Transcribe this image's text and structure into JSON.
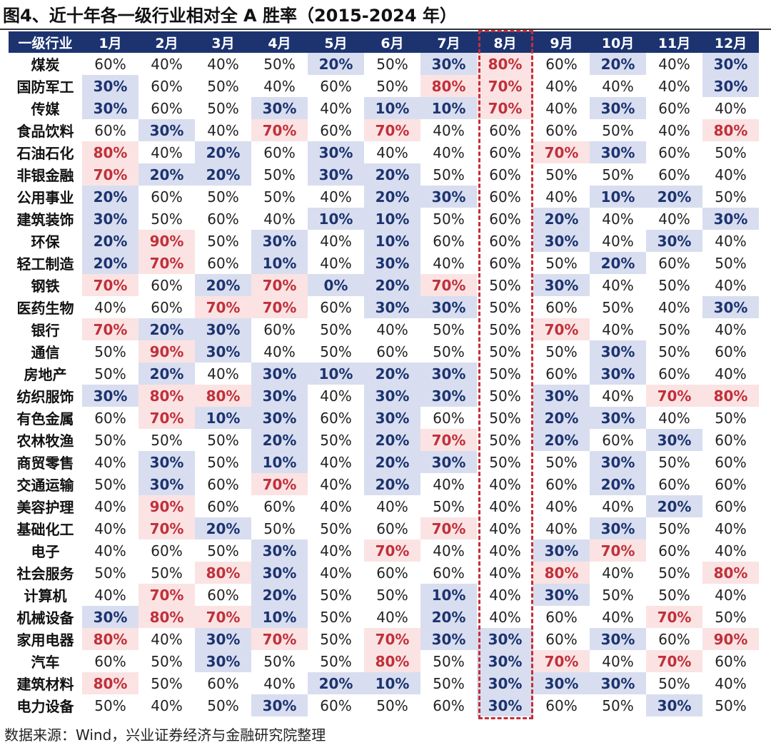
{
  "title": "图4、近十年各一级行业相对全 A 胜率（2015-2024 年）",
  "table": {
    "header": [
      "一级行业",
      "1月",
      "2月",
      "3月",
      "4月",
      "5月",
      "6月",
      "7月",
      "8月",
      "9月",
      "10月",
      "11月",
      "12月"
    ],
    "rows": [
      [
        "煤炭",
        "60%",
        "40%",
        "40%",
        "50%",
        "20%",
        "50%",
        "30%",
        "80%",
        "60%",
        "20%",
        "40%",
        "30%"
      ],
      [
        "国防军工",
        "30%",
        "60%",
        "50%",
        "40%",
        "60%",
        "50%",
        "80%",
        "70%",
        "40%",
        "40%",
        "40%",
        "30%"
      ],
      [
        "传媒",
        "30%",
        "60%",
        "50%",
        "30%",
        "40%",
        "10%",
        "10%",
        "70%",
        "40%",
        "30%",
        "60%",
        "40%"
      ],
      [
        "食品饮料",
        "60%",
        "30%",
        "40%",
        "70%",
        "60%",
        "70%",
        "40%",
        "60%",
        "60%",
        "50%",
        "40%",
        "80%"
      ],
      [
        "石油石化",
        "80%",
        "40%",
        "20%",
        "60%",
        "30%",
        "40%",
        "40%",
        "60%",
        "70%",
        "30%",
        "60%",
        "50%"
      ],
      [
        "非银金融",
        "70%",
        "20%",
        "20%",
        "50%",
        "30%",
        "20%",
        "50%",
        "60%",
        "50%",
        "50%",
        "60%",
        "40%"
      ],
      [
        "公用事业",
        "20%",
        "60%",
        "50%",
        "50%",
        "40%",
        "20%",
        "30%",
        "60%",
        "40%",
        "10%",
        "20%",
        "50%"
      ],
      [
        "建筑装饰",
        "30%",
        "50%",
        "60%",
        "40%",
        "10%",
        "10%",
        "50%",
        "60%",
        "20%",
        "40%",
        "40%",
        "30%"
      ],
      [
        "环保",
        "20%",
        "90%",
        "50%",
        "30%",
        "40%",
        "10%",
        "60%",
        "60%",
        "30%",
        "40%",
        "30%",
        "40%"
      ],
      [
        "轻工制造",
        "20%",
        "70%",
        "60%",
        "10%",
        "40%",
        "30%",
        "40%",
        "60%",
        "50%",
        "20%",
        "60%",
        "50%"
      ],
      [
        "钢铁",
        "70%",
        "60%",
        "20%",
        "70%",
        "0%",
        "20%",
        "70%",
        "50%",
        "30%",
        "40%",
        "50%",
        "40%"
      ],
      [
        "医药生物",
        "40%",
        "60%",
        "70%",
        "70%",
        "60%",
        "30%",
        "30%",
        "50%",
        "60%",
        "50%",
        "40%",
        "30%"
      ],
      [
        "银行",
        "70%",
        "20%",
        "30%",
        "60%",
        "50%",
        "40%",
        "50%",
        "50%",
        "70%",
        "40%",
        "50%",
        "40%"
      ],
      [
        "通信",
        "50%",
        "90%",
        "30%",
        "40%",
        "50%",
        "60%",
        "50%",
        "50%",
        "50%",
        "30%",
        "50%",
        "60%"
      ],
      [
        "房地产",
        "50%",
        "20%",
        "40%",
        "30%",
        "10%",
        "20%",
        "30%",
        "50%",
        "60%",
        "30%",
        "60%",
        "40%"
      ],
      [
        "纺织服饰",
        "30%",
        "80%",
        "80%",
        "30%",
        "40%",
        "30%",
        "30%",
        "50%",
        "30%",
        "40%",
        "70%",
        "80%"
      ],
      [
        "有色金属",
        "60%",
        "70%",
        "10%",
        "30%",
        "60%",
        "30%",
        "60%",
        "50%",
        "20%",
        "30%",
        "40%",
        "50%"
      ],
      [
        "农林牧渔",
        "50%",
        "50%",
        "50%",
        "20%",
        "50%",
        "20%",
        "70%",
        "50%",
        "20%",
        "60%",
        "30%",
        "60%"
      ],
      [
        "商贸零售",
        "40%",
        "30%",
        "50%",
        "10%",
        "40%",
        "20%",
        "30%",
        "50%",
        "50%",
        "30%",
        "50%",
        "60%"
      ],
      [
        "交通运输",
        "50%",
        "30%",
        "60%",
        "70%",
        "40%",
        "20%",
        "40%",
        "40%",
        "60%",
        "20%",
        "60%",
        "60%"
      ],
      [
        "美容护理",
        "40%",
        "90%",
        "60%",
        "60%",
        "40%",
        "40%",
        "50%",
        "40%",
        "40%",
        "40%",
        "20%",
        "60%"
      ],
      [
        "基础化工",
        "40%",
        "70%",
        "20%",
        "50%",
        "50%",
        "60%",
        "70%",
        "40%",
        "40%",
        "30%",
        "50%",
        "40%"
      ],
      [
        "电子",
        "40%",
        "60%",
        "50%",
        "30%",
        "40%",
        "70%",
        "40%",
        "40%",
        "30%",
        "70%",
        "60%",
        "40%"
      ],
      [
        "社会服务",
        "50%",
        "50%",
        "80%",
        "30%",
        "40%",
        "60%",
        "60%",
        "40%",
        "80%",
        "40%",
        "50%",
        "80%"
      ],
      [
        "计算机",
        "40%",
        "70%",
        "60%",
        "20%",
        "50%",
        "50%",
        "10%",
        "40%",
        "30%",
        "50%",
        "50%",
        "40%"
      ],
      [
        "机械设备",
        "30%",
        "80%",
        "70%",
        "10%",
        "50%",
        "40%",
        "20%",
        "40%",
        "60%",
        "40%",
        "70%",
        "50%"
      ],
      [
        "家用电器",
        "80%",
        "40%",
        "30%",
        "70%",
        "50%",
        "70%",
        "30%",
        "30%",
        "60%",
        "30%",
        "60%",
        "90%"
      ],
      [
        "汽车",
        "60%",
        "50%",
        "30%",
        "50%",
        "50%",
        "80%",
        "50%",
        "30%",
        "70%",
        "40%",
        "70%",
        "60%"
      ],
      [
        "建筑材料",
        "80%",
        "50%",
        "60%",
        "40%",
        "20%",
        "10%",
        "50%",
        "30%",
        "30%",
        "30%",
        "50%",
        "40%"
      ],
      [
        "电力设备",
        "50%",
        "40%",
        "50%",
        "30%",
        "60%",
        "50%",
        "60%",
        "30%",
        "60%",
        "50%",
        "30%",
        "50%"
      ]
    ]
  },
  "source": "数据来源：Wind，兴业证券经济与金融研究院整理"
}
